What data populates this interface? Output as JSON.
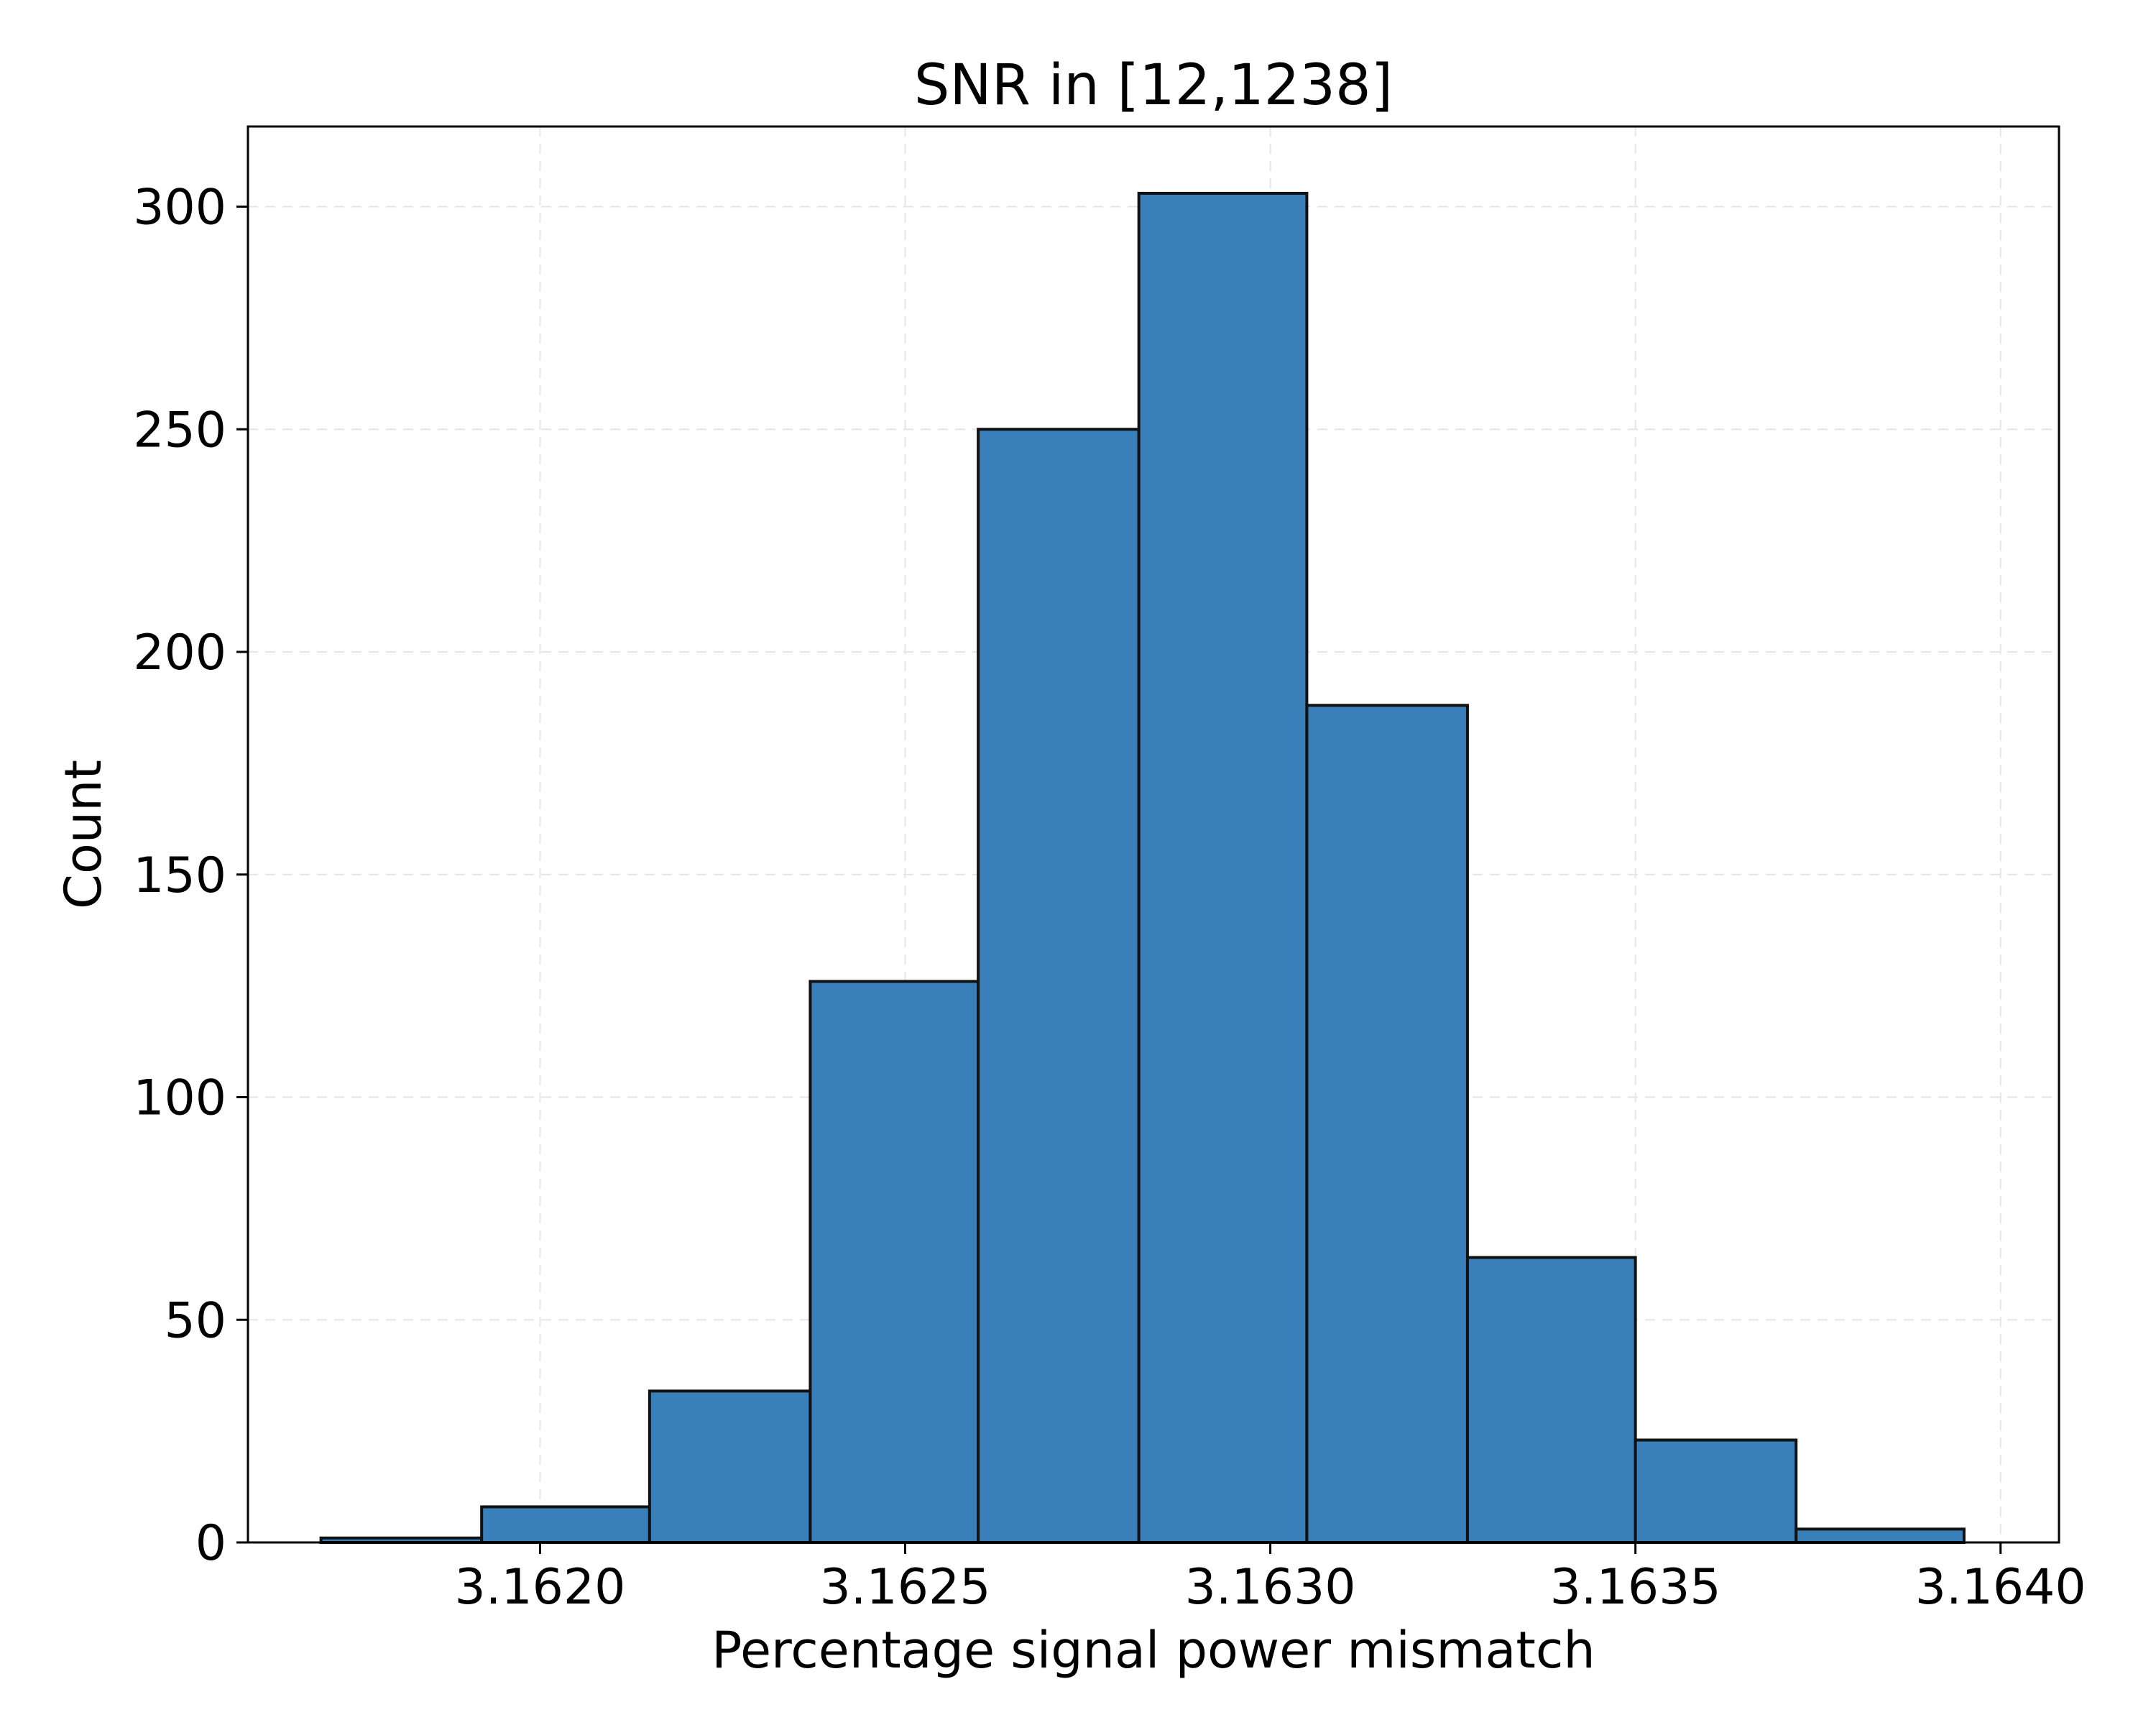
{
  "chart_data": {
    "type": "bar",
    "title": "SNR in [12,1238]",
    "xlabel": "Percentage signal power mismatch",
    "ylabel": "Count",
    "bin_edges": [
      3.1617,
      3.16192,
      3.16215,
      3.16237,
      3.1626,
      3.16282,
      3.16305,
      3.16327,
      3.1635,
      3.16372,
      3.16395
    ],
    "values": [
      1,
      8,
      34,
      126,
      250,
      303,
      188,
      64,
      23,
      3
    ],
    "xlim": [
      3.1616,
      3.16408
    ],
    "ylim": [
      0,
      318
    ],
    "xticks": [
      3.162,
      3.1625,
      3.163,
      3.1635,
      3.164
    ],
    "xtick_labels": [
      "3.1620",
      "3.1625",
      "3.1630",
      "3.1635",
      "3.1640"
    ],
    "yticks": [
      0,
      50,
      100,
      150,
      200,
      250,
      300
    ],
    "ytick_labels": [
      "0",
      "50",
      "100",
      "150",
      "200",
      "250",
      "300"
    ],
    "grid": true,
    "bar_color": "#397fba",
    "edge_color": "#111111"
  }
}
